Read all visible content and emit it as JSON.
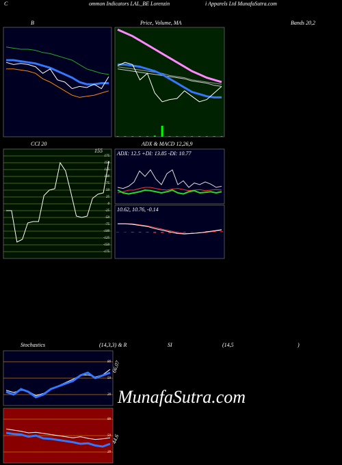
{
  "header": [
    "C",
    "ommon Indicators LAL_BE Lorenzin",
    "i Apparels Ltd MunafaSutra.com"
  ],
  "bands_label": "Bands 20,2",
  "stoch_labels": [
    "Stochastics",
    "(14,3,3) & R",
    "SI",
    "(14,5",
    ")"
  ],
  "watermark": "MunafaSutra.com",
  "chart_data": [
    {
      "type": "line",
      "title": "B",
      "ylim": [
        0,
        100
      ],
      "series": [
        {
          "name": "upper",
          "color": "#22aa22",
          "values": [
            82,
            81,
            80,
            80,
            79,
            77,
            76,
            74,
            72,
            70,
            66,
            62,
            60,
            58,
            57
          ]
        },
        {
          "name": "lower",
          "color": "#ff8800",
          "values": [
            62,
            62,
            61,
            60,
            58,
            53,
            50,
            46,
            42,
            38,
            36,
            37,
            38,
            40,
            42
          ]
        },
        {
          "name": "middle",
          "color": "#3377ff",
          "width": 3,
          "values": [
            70,
            70,
            69,
            68,
            67,
            65,
            63,
            60,
            57,
            54,
            50,
            48,
            48,
            49,
            49
          ]
        },
        {
          "name": "price",
          "color": "#ffffff",
          "values": [
            68,
            66,
            67,
            66,
            64,
            58,
            62,
            52,
            50,
            44,
            46,
            45,
            48,
            44,
            55
          ]
        }
      ]
    },
    {
      "type": "line",
      "title": "Price, Volume, MA",
      "ylim": [
        0,
        100
      ],
      "volume": {
        "color": "#00ff00",
        "values": [
          0.5,
          0.5,
          0.5,
          0.5,
          0.5,
          1,
          10,
          0.5,
          0.5,
          0.5,
          0.5,
          0.5,
          0.5,
          0.5,
          0.5
        ]
      },
      "series": [
        {
          "name": "ma-long",
          "color": "#999999",
          "values": [
            64,
            63,
            62,
            61,
            60,
            59,
            58,
            56,
            55,
            54,
            52,
            51,
            50,
            49,
            48
          ]
        },
        {
          "name": "ma-mid",
          "color": "#cccccc",
          "values": [
            62,
            61,
            60,
            59,
            58,
            57,
            56,
            55,
            54,
            53,
            51,
            50,
            49,
            47,
            46
          ]
        },
        {
          "name": "ma-pink",
          "color": "#ff88ff",
          "width": 3,
          "values": [
            98,
            95,
            92,
            88,
            84,
            80,
            76,
            72,
            68,
            64,
            60,
            57,
            54,
            52,
            50
          ]
        },
        {
          "name": "ma-blue",
          "color": "#3377ff",
          "width": 3,
          "values": [
            66,
            66,
            65,
            64,
            62,
            60,
            57,
            53,
            49,
            45,
            41,
            39,
            37,
            36,
            36
          ]
        },
        {
          "name": "price",
          "color": "#ffffff",
          "values": [
            65,
            68,
            66,
            52,
            58,
            40,
            32,
            34,
            35,
            42,
            37,
            32,
            34,
            40,
            46
          ]
        }
      ]
    },
    {
      "type": "line",
      "title": "CCI 20",
      "annotation": "155",
      "ylim": [
        -200,
        200
      ],
      "yticks": [
        175,
        150,
        125,
        100,
        75,
        50,
        25,
        0,
        -25,
        -50,
        -75,
        -100,
        -125,
        -150,
        -175
      ],
      "series": [
        {
          "name": "cci",
          "color": "#ffffff",
          "values": [
            -25,
            -25,
            -140,
            -130,
            -70,
            -65,
            -65,
            30,
            50,
            55,
            150,
            120,
            40,
            -45,
            -50,
            -45,
            20,
            35,
            40,
            155
          ]
        }
      ]
    },
    {
      "type": "line",
      "title": "ADX  & MACD 12,26,9",
      "subtitle": "ADX: 12.5 +DI: 13.85 -DI: 10.77",
      "ylim": [
        0,
        100
      ],
      "series": [
        {
          "name": "-di",
          "color": "#ff3333",
          "values": [
            20,
            22,
            25,
            25,
            28,
            30,
            30,
            28,
            26,
            25,
            27,
            28,
            26,
            24,
            25,
            26,
            24,
            25,
            26,
            25
          ]
        },
        {
          "name": "+di",
          "color": "#22dd22",
          "width": 2,
          "values": [
            25,
            20,
            18,
            20,
            22,
            25,
            24,
            22,
            20,
            22,
            25,
            20,
            18,
            22,
            24,
            20,
            21,
            22,
            20,
            22
          ]
        },
        {
          "name": "adx",
          "color": "#dddddd",
          "values": [
            30,
            28,
            32,
            40,
            60,
            50,
            62,
            45,
            35,
            55,
            62,
            35,
            42,
            30,
            38,
            35,
            40,
            36,
            30,
            32
          ]
        }
      ]
    },
    {
      "type": "line",
      "subtitle": "10.62, 10.76, -0.14",
      "ylim": [
        -50,
        50
      ],
      "histogram": {
        "color": "#ff2222",
        "values": [
          0,
          0,
          -1,
          -1,
          -1,
          -2,
          -2,
          -2,
          -2,
          -1,
          0,
          0,
          1,
          1,
          1
        ]
      },
      "series": [
        {
          "name": "signal",
          "color": "#ff4444",
          "values": [
            15,
            15,
            15,
            13,
            11,
            8,
            5,
            2,
            -1,
            -3,
            -3,
            -2,
            -1,
            1,
            3
          ]
        },
        {
          "name": "macd",
          "color": "#ffffff",
          "values": [
            15,
            15,
            14,
            12,
            10,
            6,
            3,
            0,
            -3,
            -4,
            -3,
            -2,
            0,
            2,
            4
          ]
        }
      ]
    },
    {
      "type": "line",
      "annotation": "66.07",
      "ylim": [
        0,
        100
      ],
      "yticks": [
        80,
        50,
        20
      ],
      "tick_color": "#cc7700",
      "series": [
        {
          "name": "d",
          "color": "#ffffff",
          "values": [
            28,
            24,
            28,
            26,
            18,
            22,
            30,
            36,
            42,
            48,
            55,
            56,
            52,
            56,
            66
          ]
        },
        {
          "name": "k",
          "color": "#3377ff",
          "width": 3,
          "values": [
            25,
            20,
            30,
            25,
            15,
            20,
            30,
            35,
            40,
            45,
            55,
            60,
            50,
            55,
            60
          ]
        }
      ]
    },
    {
      "type": "line",
      "annotation": "44.6",
      "ylim": [
        0,
        100
      ],
      "yticks": [
        80,
        50,
        20
      ],
      "tick_color": "#cc7700",
      "series": [
        {
          "name": "rsi-white",
          "color": "#ffffff",
          "values": [
            62,
            60,
            58,
            55,
            56,
            54,
            52,
            50,
            48,
            46,
            48,
            45,
            43,
            44,
            46
          ]
        },
        {
          "name": "rsi-blue",
          "color": "#3377ff",
          "width": 3,
          "values": [
            55,
            53,
            52,
            48,
            50,
            45,
            44,
            42,
            40,
            38,
            35,
            36,
            32,
            30,
            35
          ]
        }
      ]
    }
  ]
}
